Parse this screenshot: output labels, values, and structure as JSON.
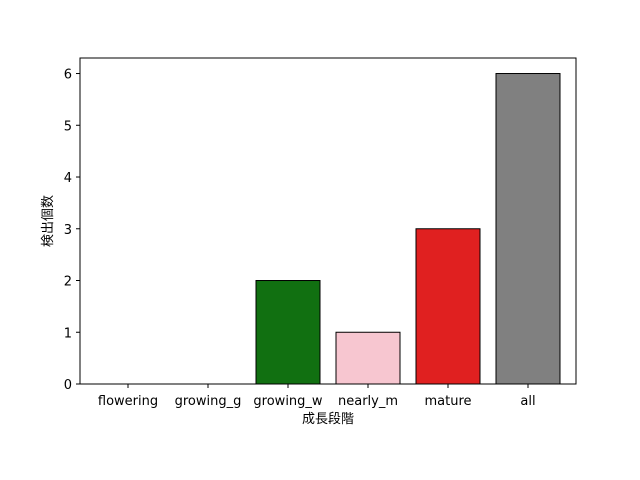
{
  "chart_data": {
    "type": "bar",
    "title": "",
    "xlabel": "成長段階",
    "ylabel": "検出個数",
    "categories": [
      "flowering",
      "growing_g",
      "growing_w",
      "nearly_m",
      "mature",
      "all"
    ],
    "values": [
      0,
      0,
      2,
      1,
      3,
      6
    ],
    "colors": [
      "#00a000",
      "#ffa500",
      "#117011",
      "#f7c6d0",
      "#e02020",
      "#808080"
    ],
    "edge_color": "#000000",
    "ylim": [
      0,
      6.3
    ],
    "yticks": [
      0,
      1,
      2,
      3,
      4,
      5,
      6
    ],
    "grid": false,
    "legend": "none"
  }
}
